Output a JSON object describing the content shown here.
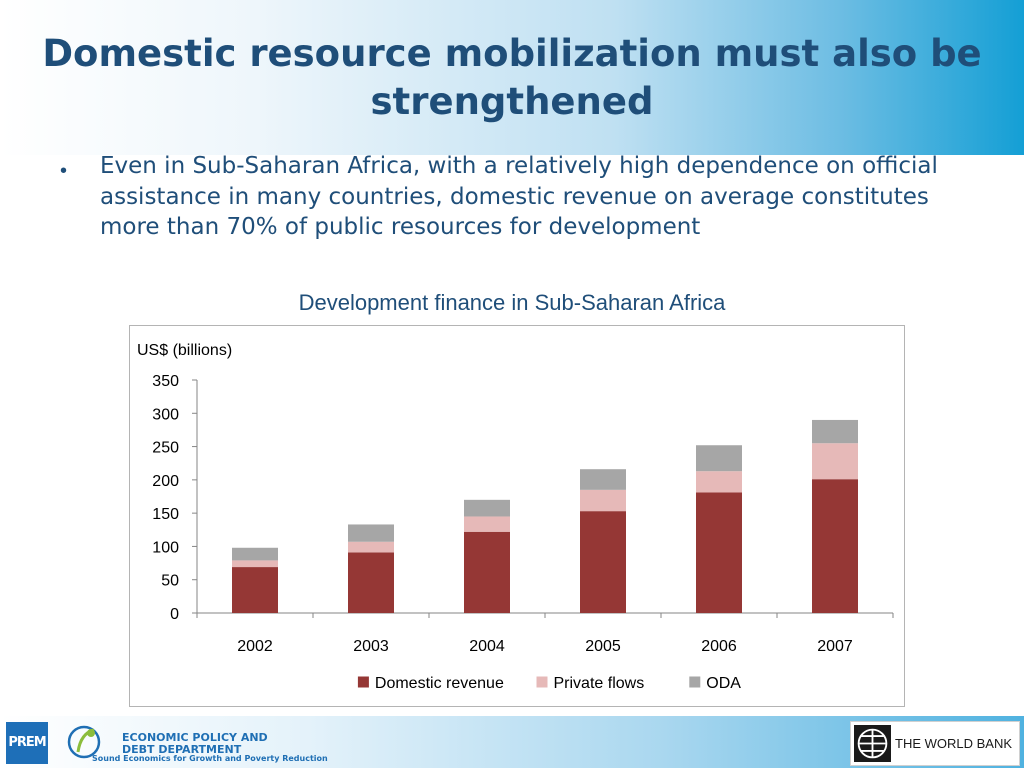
{
  "slide": {
    "title": "Domestic resource mobilization must also be strengthened",
    "bullet_marker": "•",
    "bullet_text": "Even in Sub-Saharan Africa, with a relatively high dependence on official assistance in many countries, domestic revenue on average constitutes more than 70% of public resources for development",
    "chart_caption": "Development finance in Sub-Saharan Africa"
  },
  "chart_data": {
    "type": "bar",
    "stacked": true,
    "ylabel": "US$ (billions)",
    "ylim": [
      0,
      350
    ],
    "yticks": [
      0,
      50,
      100,
      150,
      200,
      250,
      300,
      350
    ],
    "categories": [
      "2002",
      "2003",
      "2004",
      "2005",
      "2006",
      "2007"
    ],
    "series": [
      {
        "name": "Domestic revenue",
        "color": "#953735",
        "values": [
          69,
          91,
          122,
          153,
          181,
          201
        ]
      },
      {
        "name": "Private flows",
        "color": "#e6b9b8",
        "values": [
          10,
          16,
          23,
          32,
          32,
          54
        ]
      },
      {
        "name": "ODA",
        "color": "#a6a6a6",
        "values": [
          19,
          26,
          25,
          31,
          39,
          35
        ]
      }
    ],
    "grid": false,
    "legend_position": "bottom"
  },
  "footer": {
    "prem_logo_text": "PREM",
    "epd_name_line1": "ECONOMIC POLICY AND",
    "epd_name_line2": "DEBT DEPARTMENT",
    "epd_tagline": "Sound Economics for Growth and Poverty Reduction",
    "world_bank_label": "THE WORLD BANK"
  }
}
